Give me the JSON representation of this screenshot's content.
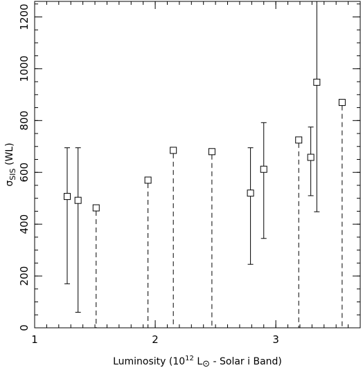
{
  "chart_data": {
    "type": "scatter",
    "title": "",
    "xlabel": {
      "prefix": "Luminosity (10",
      "exponent": "12",
      "middle": " L",
      "sun_symbol": "⊙",
      "suffix": " - Solar i Band)"
    },
    "ylabel": {
      "symbol": "σ",
      "subscript": "SIS",
      "suffix": " (WL)"
    },
    "xlim": [
      1.0,
      3.7
    ],
    "ylim": [
      0,
      1260
    ],
    "x_ticks": [
      {
        "value": 1,
        "label": "1"
      },
      {
        "value": 2,
        "label": "2"
      },
      {
        "value": 3,
        "label": "3"
      }
    ],
    "y_ticks": [
      {
        "value": 0,
        "label": "0"
      },
      {
        "value": 200,
        "label": "200"
      },
      {
        "value": 400,
        "label": "400"
      },
      {
        "value": 600,
        "label": "600"
      },
      {
        "value": 800,
        "label": "800"
      },
      {
        "value": 1000,
        "label": "1000"
      },
      {
        "value": 1200,
        "label": "1200"
      }
    ],
    "x_minor_step": 0.1,
    "y_minor_step": 50,
    "series": [
      {
        "kind": "measurement_with_errorbars",
        "points": [
          {
            "x": 1.27,
            "y": 507,
            "ylow": 170,
            "yhigh": 695
          },
          {
            "x": 1.36,
            "y": 492,
            "ylow": 60,
            "yhigh": 695
          },
          {
            "x": 2.79,
            "y": 520,
            "ylow": 245,
            "yhigh": 695
          },
          {
            "x": 2.9,
            "y": 612,
            "ylow": 345,
            "yhigh": 792
          },
          {
            "x": 3.29,
            "y": 658,
            "ylow": 510,
            "yhigh": 775
          },
          {
            "x": 3.34,
            "y": 948,
            "ylow": 448,
            "yhigh": 1260
          }
        ]
      },
      {
        "kind": "upper_limit_dashed",
        "points": [
          {
            "x": 1.51,
            "y": 463
          },
          {
            "x": 1.94,
            "y": 570
          },
          {
            "x": 2.15,
            "y": 685
          },
          {
            "x": 2.47,
            "y": 680
          },
          {
            "x": 3.19,
            "y": 725
          },
          {
            "x": 3.55,
            "y": 870
          }
        ]
      }
    ]
  }
}
